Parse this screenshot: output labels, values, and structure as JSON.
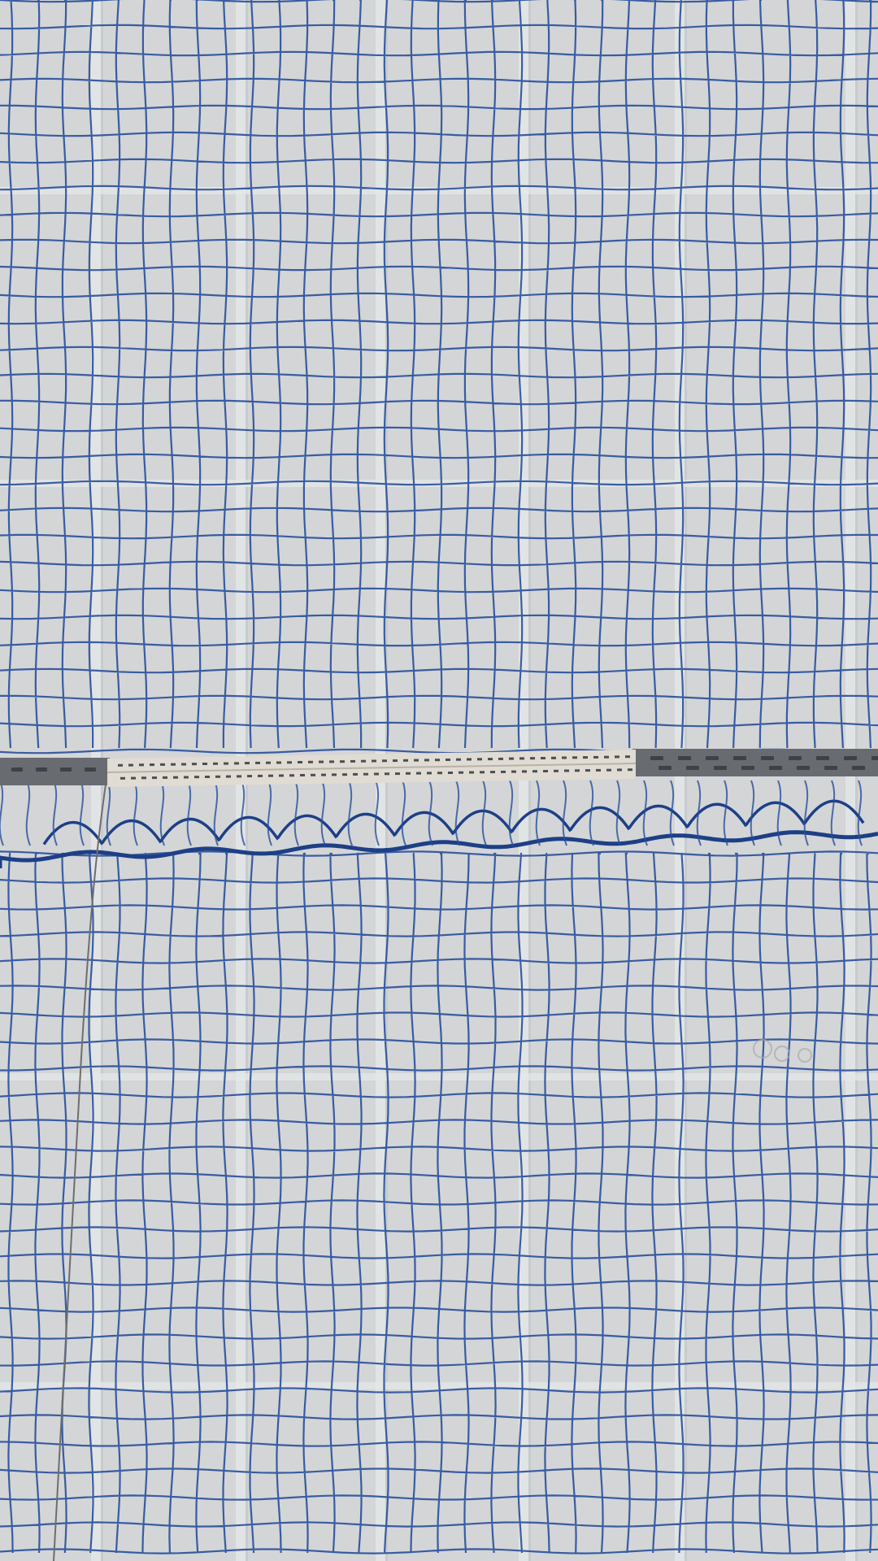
{
  "scene": {
    "subject": "blue-netting-over-panel-wall",
    "colors": {
      "wall": "#d3d5d7",
      "wall_shadow": "#c2c5c8",
      "panel_seam": "#e6e8ea",
      "net": "#274f9a",
      "net_dark": "#1d3f86",
      "rail": "#686c71",
      "rail_light": "#e0dcd3",
      "rail_hole": "#4b4e52",
      "wire": "#6e6e6e",
      "faint_mark": "#a9aaa8"
    }
  }
}
